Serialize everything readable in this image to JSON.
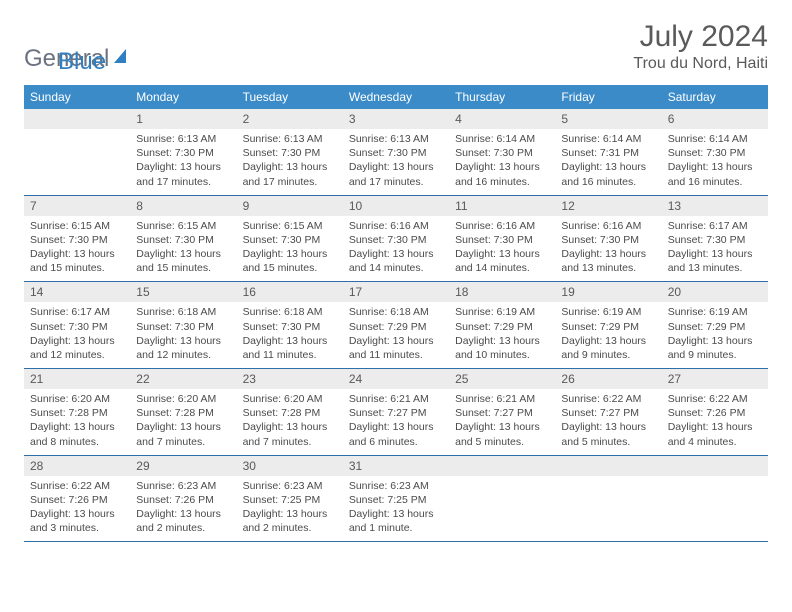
{
  "logo": {
    "general": "General",
    "blue": "Blue"
  },
  "title": "July 2024",
  "location": "Trou du Nord, Haiti",
  "colors": {
    "header_bg": "#3b8bc9",
    "header_text": "#ffffff",
    "daynum_bg": "#ececec",
    "text": "#4b4b4b",
    "rule": "#2f6fa8",
    "logo_gray": "#6b7280",
    "logo_blue": "#2f7fc1"
  },
  "weekdays": [
    "Sunday",
    "Monday",
    "Tuesday",
    "Wednesday",
    "Thursday",
    "Friday",
    "Saturday"
  ],
  "weeks": [
    [
      null,
      {
        "n": "1",
        "sr": "Sunrise: 6:13 AM",
        "ss": "Sunset: 7:30 PM",
        "dl": "Daylight: 13 hours and 17 minutes."
      },
      {
        "n": "2",
        "sr": "Sunrise: 6:13 AM",
        "ss": "Sunset: 7:30 PM",
        "dl": "Daylight: 13 hours and 17 minutes."
      },
      {
        "n": "3",
        "sr": "Sunrise: 6:13 AM",
        "ss": "Sunset: 7:30 PM",
        "dl": "Daylight: 13 hours and 17 minutes."
      },
      {
        "n": "4",
        "sr": "Sunrise: 6:14 AM",
        "ss": "Sunset: 7:30 PM",
        "dl": "Daylight: 13 hours and 16 minutes."
      },
      {
        "n": "5",
        "sr": "Sunrise: 6:14 AM",
        "ss": "Sunset: 7:31 PM",
        "dl": "Daylight: 13 hours and 16 minutes."
      },
      {
        "n": "6",
        "sr": "Sunrise: 6:14 AM",
        "ss": "Sunset: 7:30 PM",
        "dl": "Daylight: 13 hours and 16 minutes."
      }
    ],
    [
      {
        "n": "7",
        "sr": "Sunrise: 6:15 AM",
        "ss": "Sunset: 7:30 PM",
        "dl": "Daylight: 13 hours and 15 minutes."
      },
      {
        "n": "8",
        "sr": "Sunrise: 6:15 AM",
        "ss": "Sunset: 7:30 PM",
        "dl": "Daylight: 13 hours and 15 minutes."
      },
      {
        "n": "9",
        "sr": "Sunrise: 6:15 AM",
        "ss": "Sunset: 7:30 PM",
        "dl": "Daylight: 13 hours and 15 minutes."
      },
      {
        "n": "10",
        "sr": "Sunrise: 6:16 AM",
        "ss": "Sunset: 7:30 PM",
        "dl": "Daylight: 13 hours and 14 minutes."
      },
      {
        "n": "11",
        "sr": "Sunrise: 6:16 AM",
        "ss": "Sunset: 7:30 PM",
        "dl": "Daylight: 13 hours and 14 minutes."
      },
      {
        "n": "12",
        "sr": "Sunrise: 6:16 AM",
        "ss": "Sunset: 7:30 PM",
        "dl": "Daylight: 13 hours and 13 minutes."
      },
      {
        "n": "13",
        "sr": "Sunrise: 6:17 AM",
        "ss": "Sunset: 7:30 PM",
        "dl": "Daylight: 13 hours and 13 minutes."
      }
    ],
    [
      {
        "n": "14",
        "sr": "Sunrise: 6:17 AM",
        "ss": "Sunset: 7:30 PM",
        "dl": "Daylight: 13 hours and 12 minutes."
      },
      {
        "n": "15",
        "sr": "Sunrise: 6:18 AM",
        "ss": "Sunset: 7:30 PM",
        "dl": "Daylight: 13 hours and 12 minutes."
      },
      {
        "n": "16",
        "sr": "Sunrise: 6:18 AM",
        "ss": "Sunset: 7:30 PM",
        "dl": "Daylight: 13 hours and 11 minutes."
      },
      {
        "n": "17",
        "sr": "Sunrise: 6:18 AM",
        "ss": "Sunset: 7:29 PM",
        "dl": "Daylight: 13 hours and 11 minutes."
      },
      {
        "n": "18",
        "sr": "Sunrise: 6:19 AM",
        "ss": "Sunset: 7:29 PM",
        "dl": "Daylight: 13 hours and 10 minutes."
      },
      {
        "n": "19",
        "sr": "Sunrise: 6:19 AM",
        "ss": "Sunset: 7:29 PM",
        "dl": "Daylight: 13 hours and 9 minutes."
      },
      {
        "n": "20",
        "sr": "Sunrise: 6:19 AM",
        "ss": "Sunset: 7:29 PM",
        "dl": "Daylight: 13 hours and 9 minutes."
      }
    ],
    [
      {
        "n": "21",
        "sr": "Sunrise: 6:20 AM",
        "ss": "Sunset: 7:28 PM",
        "dl": "Daylight: 13 hours and 8 minutes."
      },
      {
        "n": "22",
        "sr": "Sunrise: 6:20 AM",
        "ss": "Sunset: 7:28 PM",
        "dl": "Daylight: 13 hours and 7 minutes."
      },
      {
        "n": "23",
        "sr": "Sunrise: 6:20 AM",
        "ss": "Sunset: 7:28 PM",
        "dl": "Daylight: 13 hours and 7 minutes."
      },
      {
        "n": "24",
        "sr": "Sunrise: 6:21 AM",
        "ss": "Sunset: 7:27 PM",
        "dl": "Daylight: 13 hours and 6 minutes."
      },
      {
        "n": "25",
        "sr": "Sunrise: 6:21 AM",
        "ss": "Sunset: 7:27 PM",
        "dl": "Daylight: 13 hours and 5 minutes."
      },
      {
        "n": "26",
        "sr": "Sunrise: 6:22 AM",
        "ss": "Sunset: 7:27 PM",
        "dl": "Daylight: 13 hours and 5 minutes."
      },
      {
        "n": "27",
        "sr": "Sunrise: 6:22 AM",
        "ss": "Sunset: 7:26 PM",
        "dl": "Daylight: 13 hours and 4 minutes."
      }
    ],
    [
      {
        "n": "28",
        "sr": "Sunrise: 6:22 AM",
        "ss": "Sunset: 7:26 PM",
        "dl": "Daylight: 13 hours and 3 minutes."
      },
      {
        "n": "29",
        "sr": "Sunrise: 6:23 AM",
        "ss": "Sunset: 7:26 PM",
        "dl": "Daylight: 13 hours and 2 minutes."
      },
      {
        "n": "30",
        "sr": "Sunrise: 6:23 AM",
        "ss": "Sunset: 7:25 PM",
        "dl": "Daylight: 13 hours and 2 minutes."
      },
      {
        "n": "31",
        "sr": "Sunrise: 6:23 AM",
        "ss": "Sunset: 7:25 PM",
        "dl": "Daylight: 13 hours and 1 minute."
      },
      null,
      null,
      null
    ]
  ]
}
